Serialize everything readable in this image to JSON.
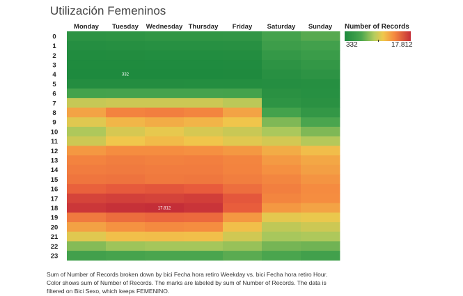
{
  "page": {
    "title": "Utilización Femeninos",
    "caption": "Sum of Number of Records broken down by bici Fecha hora retiro Weekday vs. bici Fecha hora retiro Hour.  Color shows sum of Number of Records.  The marks are labeled by sum of Number of Records.  The data is filtered on Bici Sexo, which keeps FEMENINO."
  },
  "legend": {
    "title": "Number of Records",
    "min_label": "332",
    "max_label": "17.812"
  },
  "colors": {
    "low": "#1e8a3e",
    "high": "#c42e38"
  },
  "chart_data": {
    "type": "heatmap",
    "title": "Utilización Femeninos",
    "x": [
      "Monday",
      "Tuesday",
      "Wednesday",
      "Thursday",
      "Friday",
      "Saturday",
      "Sunday"
    ],
    "y": [
      "0",
      "1",
      "2",
      "3",
      "4",
      "5",
      "6",
      "7",
      "8",
      "9",
      "10",
      "11",
      "12",
      "13",
      "14",
      "15",
      "16",
      "17",
      "18",
      "19",
      "20",
      "21",
      "22",
      "23"
    ],
    "color_range": [
      332,
      17812
    ],
    "values": [
      [
        1600,
        1700,
        1900,
        1900,
        2000,
        3600,
        4300
      ],
      [
        900,
        1000,
        1100,
        1100,
        1200,
        2900,
        3300
      ],
      [
        600,
        650,
        700,
        700,
        750,
        2200,
        2700
      ],
      [
        420,
        420,
        450,
        450,
        480,
        1600,
        2100
      ],
      [
        340,
        332,
        360,
        360,
        380,
        1200,
        1600
      ],
      [
        800,
        800,
        800,
        820,
        820,
        900,
        1000
      ],
      [
        3500,
        3600,
        3600,
        3600,
        3500,
        1300,
        1100
      ],
      [
        7800,
        8000,
        8000,
        8000,
        7500,
        1700,
        1300
      ],
      [
        10800,
        12400,
        12600,
        12300,
        10800,
        3500,
        2100
      ],
      [
        8600,
        9900,
        10400,
        10000,
        9200,
        5600,
        3900
      ],
      [
        7100,
        8300,
        8800,
        8300,
        7900,
        7000,
        5600
      ],
      [
        8000,
        9100,
        9700,
        9200,
        8600,
        8200,
        7300
      ],
      [
        11300,
        11800,
        11800,
        11700,
        11300,
        10400,
        9600
      ],
      [
        12400,
        12700,
        12500,
        12600,
        12300,
        11200,
        10600
      ],
      [
        12800,
        12900,
        12800,
        12800,
        12400,
        11700,
        11000
      ],
      [
        13200,
        13300,
        13000,
        13100,
        12700,
        12200,
        11500
      ],
      [
        14400,
        14800,
        15100,
        14700,
        13600,
        12600,
        11900
      ],
      [
        16300,
        16600,
        16400,
        16700,
        15000,
        12300,
        11800
      ],
      [
        17200,
        17600,
        17812,
        17400,
        14600,
        11300,
        10800
      ],
      [
        12900,
        13700,
        14000,
        13900,
        11300,
        8700,
        8900
      ],
      [
        10900,
        11600,
        12000,
        11800,
        9500,
        7600,
        8000
      ],
      [
        8600,
        9500,
        9600,
        9500,
        8100,
        6900,
        7100
      ],
      [
        5800,
        6600,
        6800,
        6800,
        6400,
        5300,
        5100
      ],
      [
        3300,
        3700,
        3900,
        3900,
        4400,
        3900,
        3300
      ]
    ],
    "labels": [
      {
        "row": 4,
        "col": 1,
        "text": "332"
      },
      {
        "row": 18,
        "col": 2,
        "text": "17.812"
      }
    ]
  }
}
